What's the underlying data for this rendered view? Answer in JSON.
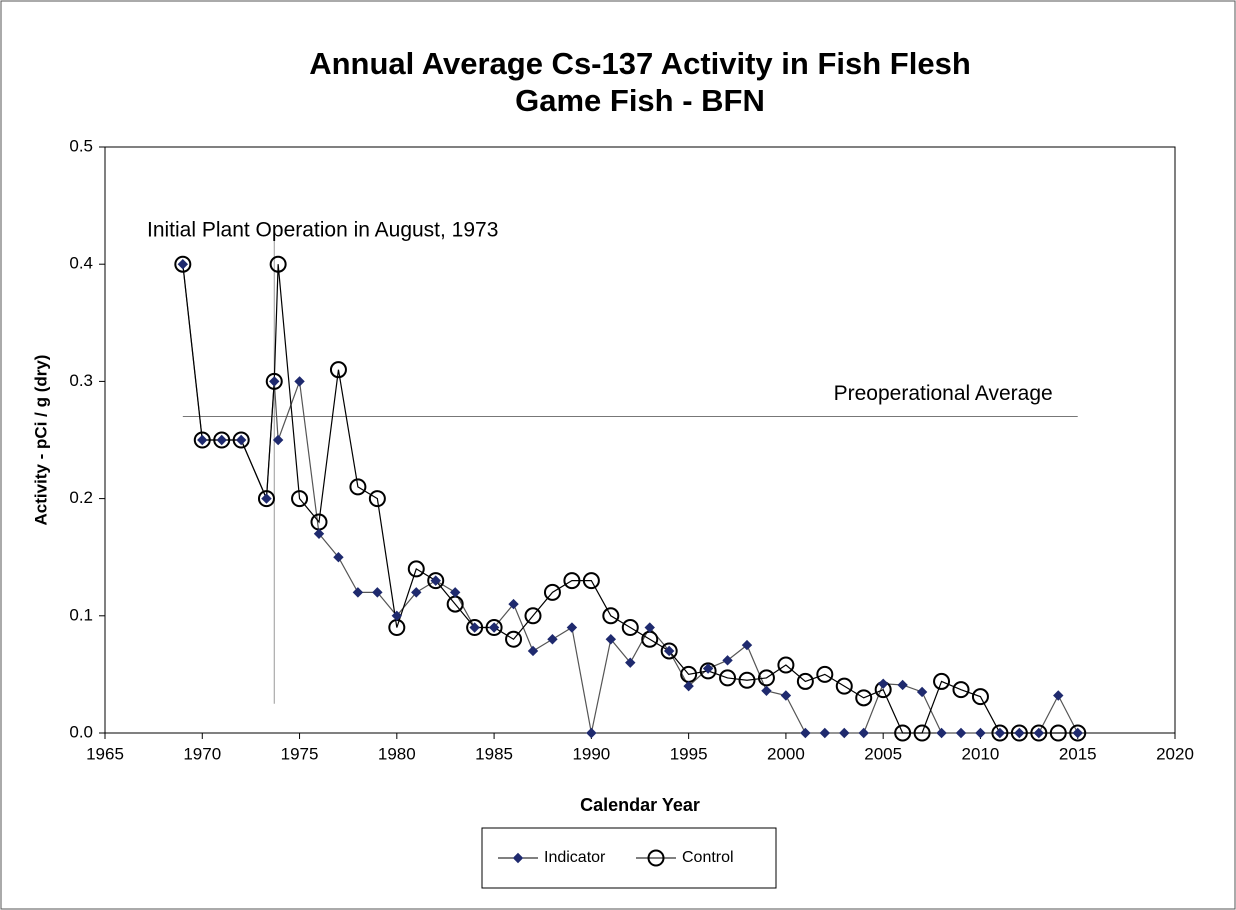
{
  "chart_data": {
    "type": "line",
    "title": "Annual Average Cs-137 Activity in Fish Flesh",
    "subtitle": "Game Fish - BFN",
    "x_label": "Calendar Year",
    "y_label": "Activity  -  pCi / g (dry)",
    "x": [
      1969,
      1970,
      1971,
      1972,
      1973.3,
      1973.7,
      1973.9,
      1975,
      1976,
      1977,
      1978,
      1979,
      1980,
      1981,
      1982,
      1983,
      1984,
      1985,
      1986,
      1987,
      1988,
      1989,
      1990,
      1991,
      1992,
      1993,
      1994,
      1995,
      1996,
      1997,
      1998,
      1999,
      2000,
      2001,
      2002,
      2003,
      2004,
      2005,
      2006,
      2007,
      2008,
      2009,
      2010,
      2011,
      2012,
      2013,
      2014,
      2015
    ],
    "series": [
      {
        "name": "Indicator",
        "color": "#1f2a6e",
        "marker": "diamond",
        "values": [
          0.4,
          0.25,
          0.25,
          0.25,
          0.2,
          0.3,
          0.25,
          0.3,
          0.17,
          0.15,
          0.12,
          0.12,
          0.1,
          0.12,
          0.13,
          0.12,
          0.09,
          0.09,
          0.11,
          0.07,
          0.08,
          0.09,
          0,
          0.08,
          0.06,
          0.09,
          0.07,
          0.04,
          0.055,
          0.062,
          0.075,
          0.036,
          0.032,
          0,
          0,
          0,
          0,
          0.042,
          0.041,
          0.035,
          0,
          0,
          0,
          0,
          0,
          0,
          0.032,
          0
        ]
      },
      {
        "name": "Control",
        "color": "#000000",
        "marker": "circle",
        "values": [
          0.4,
          0.25,
          0.25,
          0.25,
          0.2,
          0.3,
          0.4,
          0.2,
          0.18,
          0.31,
          0.21,
          0.2,
          0.09,
          0.14,
          0.13,
          0.11,
          0.09,
          0.09,
          0.08,
          0.1,
          0.12,
          0.13,
          0.13,
          0.1,
          0.09,
          0.08,
          0.07,
          0.05,
          0.053,
          0.047,
          0.045,
          0.047,
          0.058,
          0.044,
          0.05,
          0.04,
          0.03,
          0.037,
          0,
          0,
          0.044,
          0.037,
          0.031,
          0,
          0,
          0,
          0,
          0
        ]
      }
    ],
    "xlim": [
      1965,
      2020
    ],
    "xticks": [
      1965,
      1970,
      1975,
      1980,
      1985,
      1990,
      1995,
      2000,
      2005,
      2010,
      2015,
      2020
    ],
    "ylim": [
      0,
      0.5
    ],
    "yticks": [
      {
        "value": 0,
        "label": "0.0"
      },
      0.1,
      0.2,
      0.3,
      0.4,
      0.5
    ],
    "annotations": [
      {
        "text": "Initial Plant Operation in August, 1973",
        "orientation": "vertical",
        "x": 1973.7,
        "y_from": 0.025,
        "y_to": 0.425
      },
      {
        "text": "Preoperational Average",
        "orientation": "horizontal",
        "y": 0.27,
        "x_from": 1969,
        "x_to": 2015
      }
    ],
    "legend": "bottom"
  }
}
